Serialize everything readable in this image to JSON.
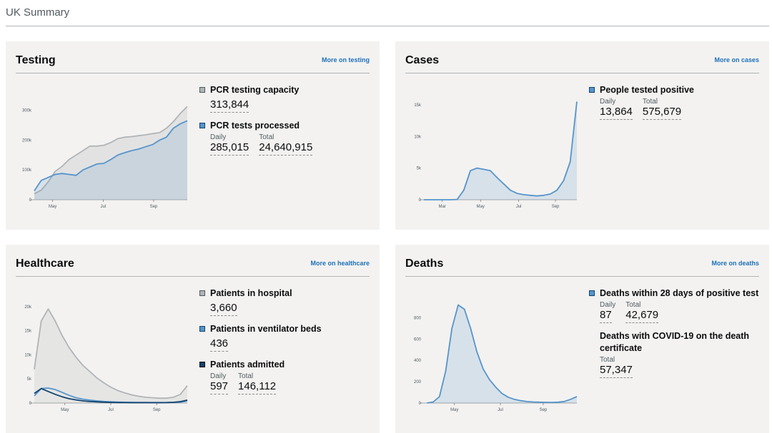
{
  "page": {
    "title": "UK Summary"
  },
  "colors": {
    "blue": "#5694ca",
    "grey": "#b1b4b6",
    "navy": "#12436d",
    "link": "#1d70b8"
  },
  "testing": {
    "title": "Testing",
    "link": "More on testing",
    "metrics": {
      "capacity": {
        "label": "PCR testing capacity",
        "value": "313,844"
      },
      "processed": {
        "label": "PCR tests processed",
        "daily_label": "Daily",
        "daily": "285,015",
        "total_label": "Total",
        "total": "24,640,915"
      }
    }
  },
  "cases": {
    "title": "Cases",
    "link": "More on cases",
    "metrics": {
      "positive": {
        "label": "People tested positive",
        "daily_label": "Daily",
        "daily": "13,864",
        "total_label": "Total",
        "total": "575,679"
      }
    }
  },
  "healthcare": {
    "title": "Healthcare",
    "link": "More on healthcare",
    "metrics": {
      "hospital": {
        "label": "Patients in hospital",
        "value": "3,660"
      },
      "ventilator": {
        "label": "Patients in ventilator beds",
        "value": "436"
      },
      "admitted": {
        "label": "Patients admitted",
        "daily_label": "Daily",
        "daily": "597",
        "total_label": "Total",
        "total": "146,112"
      }
    }
  },
  "deaths": {
    "title": "Deaths",
    "link": "More on deaths",
    "metrics": {
      "within28": {
        "label": "Deaths within 28 days of positive test",
        "daily_label": "Daily",
        "daily": "87",
        "total_label": "Total",
        "total": "42,679"
      },
      "certificate": {
        "label": "Deaths with COVID-19 on the death certificate",
        "total_label": "Total",
        "total": "57,347"
      }
    }
  },
  "chart_data": [
    {
      "type": "area",
      "x_ticks": [
        "May",
        "Jul",
        "Sep"
      ],
      "y_ticks": [
        "0",
        "100k",
        "200k",
        "300k"
      ],
      "ylim": [
        0,
        340000
      ],
      "series": [
        {
          "name": "PCR testing capacity",
          "color": "#b1b4b6",
          "values": [
            20000,
            32000,
            60000,
            95000,
            112000,
            135000,
            150000,
            165000,
            180000,
            180000,
            183000,
            192000,
            205000,
            210000,
            212000,
            215000,
            218000,
            222000,
            225000,
            240000,
            262000,
            290000,
            313000
          ]
        },
        {
          "name": "PCR tests processed",
          "color": "#5694ca",
          "values": [
            30000,
            65000,
            75000,
            85000,
            88000,
            85000,
            82000,
            100000,
            110000,
            120000,
            122000,
            135000,
            150000,
            158000,
            165000,
            170000,
            178000,
            185000,
            200000,
            210000,
            240000,
            255000,
            265000
          ]
        }
      ]
    },
    {
      "type": "area",
      "x_ticks": [
        "Mar",
        "May",
        "Jul",
        "Sep"
      ],
      "y_ticks": [
        "0",
        "5k",
        "10k",
        "15k"
      ],
      "ylim": [
        0,
        16000
      ],
      "series": [
        {
          "name": "People tested positive",
          "color": "#5694ca",
          "values": [
            0,
            0,
            0,
            0,
            0,
            50,
            1500,
            4600,
            5000,
            4800,
            4600,
            3500,
            2500,
            1500,
            1000,
            800,
            700,
            600,
            700,
            900,
            1500,
            3000,
            6000,
            15500
          ]
        }
      ]
    },
    {
      "type": "line",
      "x_ticks": [
        "May",
        "Jul",
        "Sep"
      ],
      "y_ticks": [
        "0",
        "5k",
        "10k",
        "15k",
        "20k"
      ],
      "ylim": [
        0,
        21000
      ],
      "series": [
        {
          "name": "Patients in hospital",
          "color": "#b1b4b6",
          "values": [
            7000,
            17000,
            19500,
            17000,
            14000,
            11500,
            9500,
            7800,
            6500,
            5200,
            4200,
            3300,
            2600,
            2100,
            1700,
            1400,
            1200,
            1100,
            1000,
            1000,
            1200,
            1800,
            3600
          ]
        },
        {
          "name": "Patients in ventilator beds",
          "color": "#5694ca",
          "values": [
            1500,
            3000,
            3100,
            2800,
            2200,
            1600,
            1100,
            800,
            600,
            450,
            330,
            250,
            200,
            170,
            150,
            130,
            120,
            110,
            110,
            110,
            130,
            180,
            430
          ]
        },
        {
          "name": "Patients admitted",
          "color": "#12436d",
          "values": [
            2000,
            3000,
            2400,
            1800,
            1300,
            900,
            650,
            450,
            330,
            250,
            180,
            140,
            110,
            90,
            80,
            70,
            70,
            70,
            80,
            90,
            150,
            300,
            600
          ]
        }
      ]
    },
    {
      "type": "area",
      "x_ticks": [
        "May",
        "Jul",
        "Sep"
      ],
      "y_ticks": [
        "0",
        "200",
        "400",
        "600",
        "800"
      ],
      "ylim": [
        0,
        950
      ],
      "series": [
        {
          "name": "Deaths within 28 days of positive test",
          "color": "#5694ca",
          "values": [
            0,
            10,
            60,
            300,
            700,
            920,
            880,
            700,
            480,
            320,
            220,
            150,
            90,
            55,
            35,
            22,
            14,
            10,
            8,
            7,
            6,
            8,
            15,
            35,
            60
          ]
        }
      ]
    }
  ]
}
